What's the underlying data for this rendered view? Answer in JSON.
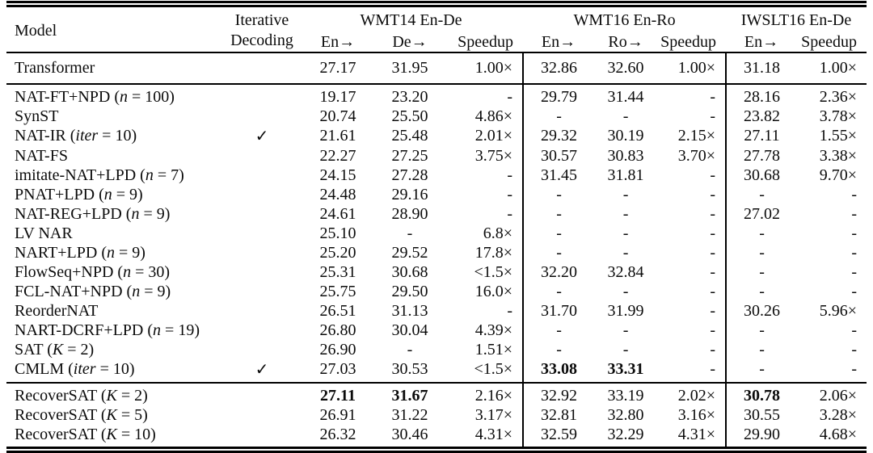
{
  "page": {
    "background": "#ffffff",
    "text_color": "#0b0b0b",
    "rule_color": "#000000"
  },
  "table": {
    "header": {
      "model": "Model",
      "iterative_line1": "Iterative",
      "iterative_line2": "Decoding",
      "groups": [
        {
          "label": "WMT14 En-De",
          "sub": [
            "En→",
            "De→",
            "Speedup"
          ]
        },
        {
          "label": "WMT16 En-Ro",
          "sub": [
            "En→",
            "Ro→",
            "Speedup"
          ]
        },
        {
          "label": "IWSLT16 En-De",
          "sub": [
            "En→",
            "Speedup"
          ]
        }
      ]
    },
    "checkmark_icon": "✓",
    "sections": [
      {
        "name": "autoregressive-baseline",
        "rows": [
          {
            "model": {
              "name": "Transformer",
              "var": null,
              "val": null
            },
            "iterative": false,
            "cells": [
              "27.17",
              "31.95",
              "1.00×",
              "32.86",
              "32.60",
              "1.00×",
              "31.18",
              "1.00×"
            ],
            "bold": []
          }
        ]
      },
      {
        "name": "non-autoregressive-models",
        "rows": [
          {
            "model": {
              "name": "NAT-FT+NPD",
              "var": "n",
              "val": "100"
            },
            "iterative": false,
            "cells": [
              "19.17",
              "23.20",
              "-",
              "29.79",
              "31.44",
              "-",
              "28.16",
              "2.36×"
            ],
            "bold": []
          },
          {
            "model": {
              "name": "SynST",
              "var": null,
              "val": null
            },
            "iterative": false,
            "cells": [
              "20.74",
              "25.50",
              "4.86×",
              "-",
              "-",
              "-",
              "23.82",
              "3.78×"
            ],
            "bold": []
          },
          {
            "model": {
              "name": "NAT-IR",
              "var": "iter",
              "val": "10"
            },
            "iterative": true,
            "cells": [
              "21.61",
              "25.48",
              "2.01×",
              "29.32",
              "30.19",
              "2.15×",
              "27.11",
              "1.55×"
            ],
            "bold": []
          },
          {
            "model": {
              "name": "NAT-FS",
              "var": null,
              "val": null
            },
            "iterative": false,
            "cells": [
              "22.27",
              "27.25",
              "3.75×",
              "30.57",
              "30.83",
              "3.70×",
              "27.78",
              "3.38×"
            ],
            "bold": []
          },
          {
            "model": {
              "name": "imitate-NAT+LPD",
              "var": "n",
              "val": "7"
            },
            "iterative": false,
            "cells": [
              "24.15",
              "27.28",
              "-",
              "31.45",
              "31.81",
              "-",
              "30.68",
              "9.70×"
            ],
            "bold": []
          },
          {
            "model": {
              "name": "PNAT+LPD",
              "var": "n",
              "val": "9"
            },
            "iterative": false,
            "cells": [
              "24.48",
              "29.16",
              "-",
              "-",
              "-",
              "-",
              "-",
              "-"
            ],
            "bold": []
          },
          {
            "model": {
              "name": "NAT-REG+LPD",
              "var": "n",
              "val": "9"
            },
            "iterative": false,
            "cells": [
              "24.61",
              "28.90",
              "-",
              "-",
              "-",
              "-",
              "27.02",
              "-"
            ],
            "bold": []
          },
          {
            "model": {
              "name": "LV NAR",
              "var": null,
              "val": null
            },
            "iterative": false,
            "cells": [
              "25.10",
              "-",
              "6.8×",
              "-",
              "-",
              "-",
              "-",
              "-"
            ],
            "bold": []
          },
          {
            "model": {
              "name": "NART+LPD",
              "var": "n",
              "val": "9"
            },
            "iterative": false,
            "cells": [
              "25.20",
              "29.52",
              "17.8×",
              "-",
              "-",
              "-",
              "-",
              "-"
            ],
            "bold": []
          },
          {
            "model": {
              "name": "FlowSeq+NPD",
              "var": "n",
              "val": "30"
            },
            "iterative": false,
            "cells": [
              "25.31",
              "30.68",
              "<1.5×",
              "32.20",
              "32.84",
              "-",
              "-",
              "-"
            ],
            "bold": []
          },
          {
            "model": {
              "name": "FCL-NAT+NPD",
              "var": "n",
              "val": "9"
            },
            "iterative": false,
            "cells": [
              "25.75",
              "29.50",
              "16.0×",
              "-",
              "-",
              "-",
              "-",
              "-"
            ],
            "bold": []
          },
          {
            "model": {
              "name": "ReorderNAT",
              "var": null,
              "val": null
            },
            "iterative": false,
            "cells": [
              "26.51",
              "31.13",
              "-",
              "31.70",
              "31.99",
              "-",
              "30.26",
              "5.96×"
            ],
            "bold": []
          },
          {
            "model": {
              "name": "NART-DCRF+LPD",
              "var": "n",
              "val": "19"
            },
            "iterative": false,
            "cells": [
              "26.80",
              "30.04",
              "4.39×",
              "-",
              "-",
              "-",
              "-",
              "-"
            ],
            "bold": []
          },
          {
            "model": {
              "name": "SAT",
              "var": "K",
              "val": "2"
            },
            "iterative": false,
            "cells": [
              "26.90",
              "-",
              "1.51×",
              "-",
              "-",
              "-",
              "-",
              "-"
            ],
            "bold": []
          },
          {
            "model": {
              "name": "CMLM",
              "var": "iter",
              "val": "10"
            },
            "iterative": true,
            "cells": [
              "27.03",
              "30.53",
              "<1.5×",
              "33.08",
              "33.31",
              "-",
              "-",
              "-"
            ],
            "bold": [
              3,
              4
            ]
          }
        ]
      },
      {
        "name": "recoversat",
        "rows": [
          {
            "model": {
              "name": "RecoverSAT",
              "var": "K",
              "val": "2"
            },
            "iterative": false,
            "cells": [
              "27.11",
              "31.67",
              "2.16×",
              "32.92",
              "33.19",
              "2.02×",
              "30.78",
              "2.06×"
            ],
            "bold": [
              0,
              1,
              6
            ]
          },
          {
            "model": {
              "name": "RecoverSAT",
              "var": "K",
              "val": "5"
            },
            "iterative": false,
            "cells": [
              "26.91",
              "31.22",
              "3.17×",
              "32.81",
              "32.80",
              "3.16×",
              "30.55",
              "3.28×"
            ],
            "bold": []
          },
          {
            "model": {
              "name": "RecoverSAT",
              "var": "K",
              "val": "10"
            },
            "iterative": false,
            "cells": [
              "26.32",
              "30.46",
              "4.31×",
              "32.59",
              "32.29",
              "4.31×",
              "29.90",
              "4.68×"
            ],
            "bold": []
          }
        ]
      }
    ]
  }
}
